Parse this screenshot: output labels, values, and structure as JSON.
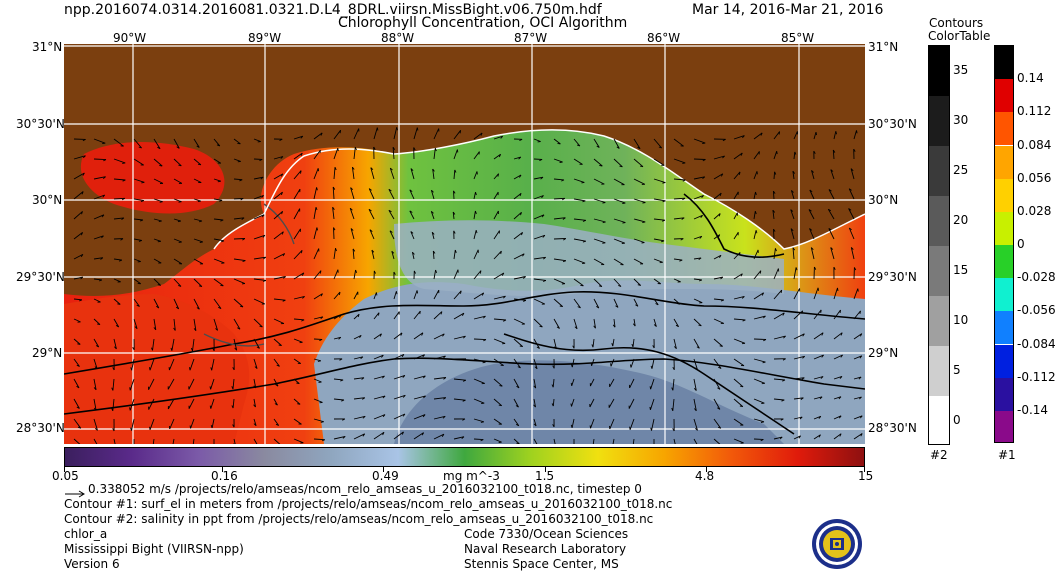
{
  "header": {
    "filename": "npp.2016074.0314.2016081.0321.D.L4_8DRL.viirsn.MissBight.v06.750m.hdf",
    "product_title": "Chlorophyll Concentration, OCI Algorithm",
    "date_range": "Mar 14, 2016-Mar 21, 2016"
  },
  "map": {
    "lon_labels": [
      "90°W",
      "89°W",
      "88°W",
      "87°W",
      "86°W",
      "85°W"
    ],
    "lat_labels": [
      "31°N",
      "30°30'N",
      "30°N",
      "29°30'N",
      "29°N",
      "28°30'N"
    ],
    "colors": {
      "land": "#7b3f0f",
      "grid": "#ffffff"
    }
  },
  "colorbar_main": {
    "tick_labels": [
      "0.05",
      "0.16",
      "0.49",
      "1.5",
      "4.8",
      "15"
    ],
    "units": "mg m^-3",
    "colors": [
      "#3b1f5e",
      "#5a2a8a",
      "#7b5aa8",
      "#8a8aa0",
      "#8fa6bf",
      "#a9c4e6",
      "#3fa83f",
      "#9fd21f",
      "#f0e010",
      "#f7a500",
      "#f25a0a",
      "#e01b0b",
      "#8e1010"
    ]
  },
  "contours_bar": {
    "title_1": "Contours",
    "title_2": "ColorTable",
    "labels": [
      "35",
      "30",
      "25",
      "20",
      "15",
      "10",
      "5",
      "0"
    ],
    "colors": [
      "#000000",
      "#1c1c1c",
      "#3a3a3a",
      "#5a5a5a",
      "#7a7a7a",
      "#a0a0a0",
      "#cfcfcf",
      "#ffffff"
    ],
    "id_label": "#2"
  },
  "color_table": {
    "labels": [
      "0.14",
      "0.112",
      "0.084",
      "0.056",
      "0.028",
      "0",
      "-0.028",
      "-0.056",
      "-0.084",
      "-0.112",
      "-0.14"
    ],
    "colors": [
      "#000000",
      "#e00000",
      "#ff5500",
      "#ffa500",
      "#ffd000",
      "#c8f000",
      "#28d028",
      "#10f0d0",
      "#1080ff",
      "#0020e0",
      "#2a10a0",
      "#8a0a8a"
    ],
    "id_label": "#1"
  },
  "footer": {
    "vector_text": "0.338052 m/s /projects/relo/amseas/ncom_relo_amseas_u_2016032100_t018.nc, timestep 0",
    "contour1_text": "Contour #1: surf_el in meters from /projects/relo/amseas/ncom_relo_amseas_u_2016032100_t018.nc",
    "contour2_text": "Contour #2: salinity in ppt from /projects/relo/amseas/ncom_relo_amseas_u_2016032100_t018.nc",
    "var_name": "chlor_a",
    "region": "Mississippi Bight (VIIRSN-npp)",
    "version": "Version 6",
    "org_code": "Code 7330/Ocean Sciences",
    "org_name": "Naval Research Laboratory",
    "org_location": "Stennis Space Center, MS"
  }
}
